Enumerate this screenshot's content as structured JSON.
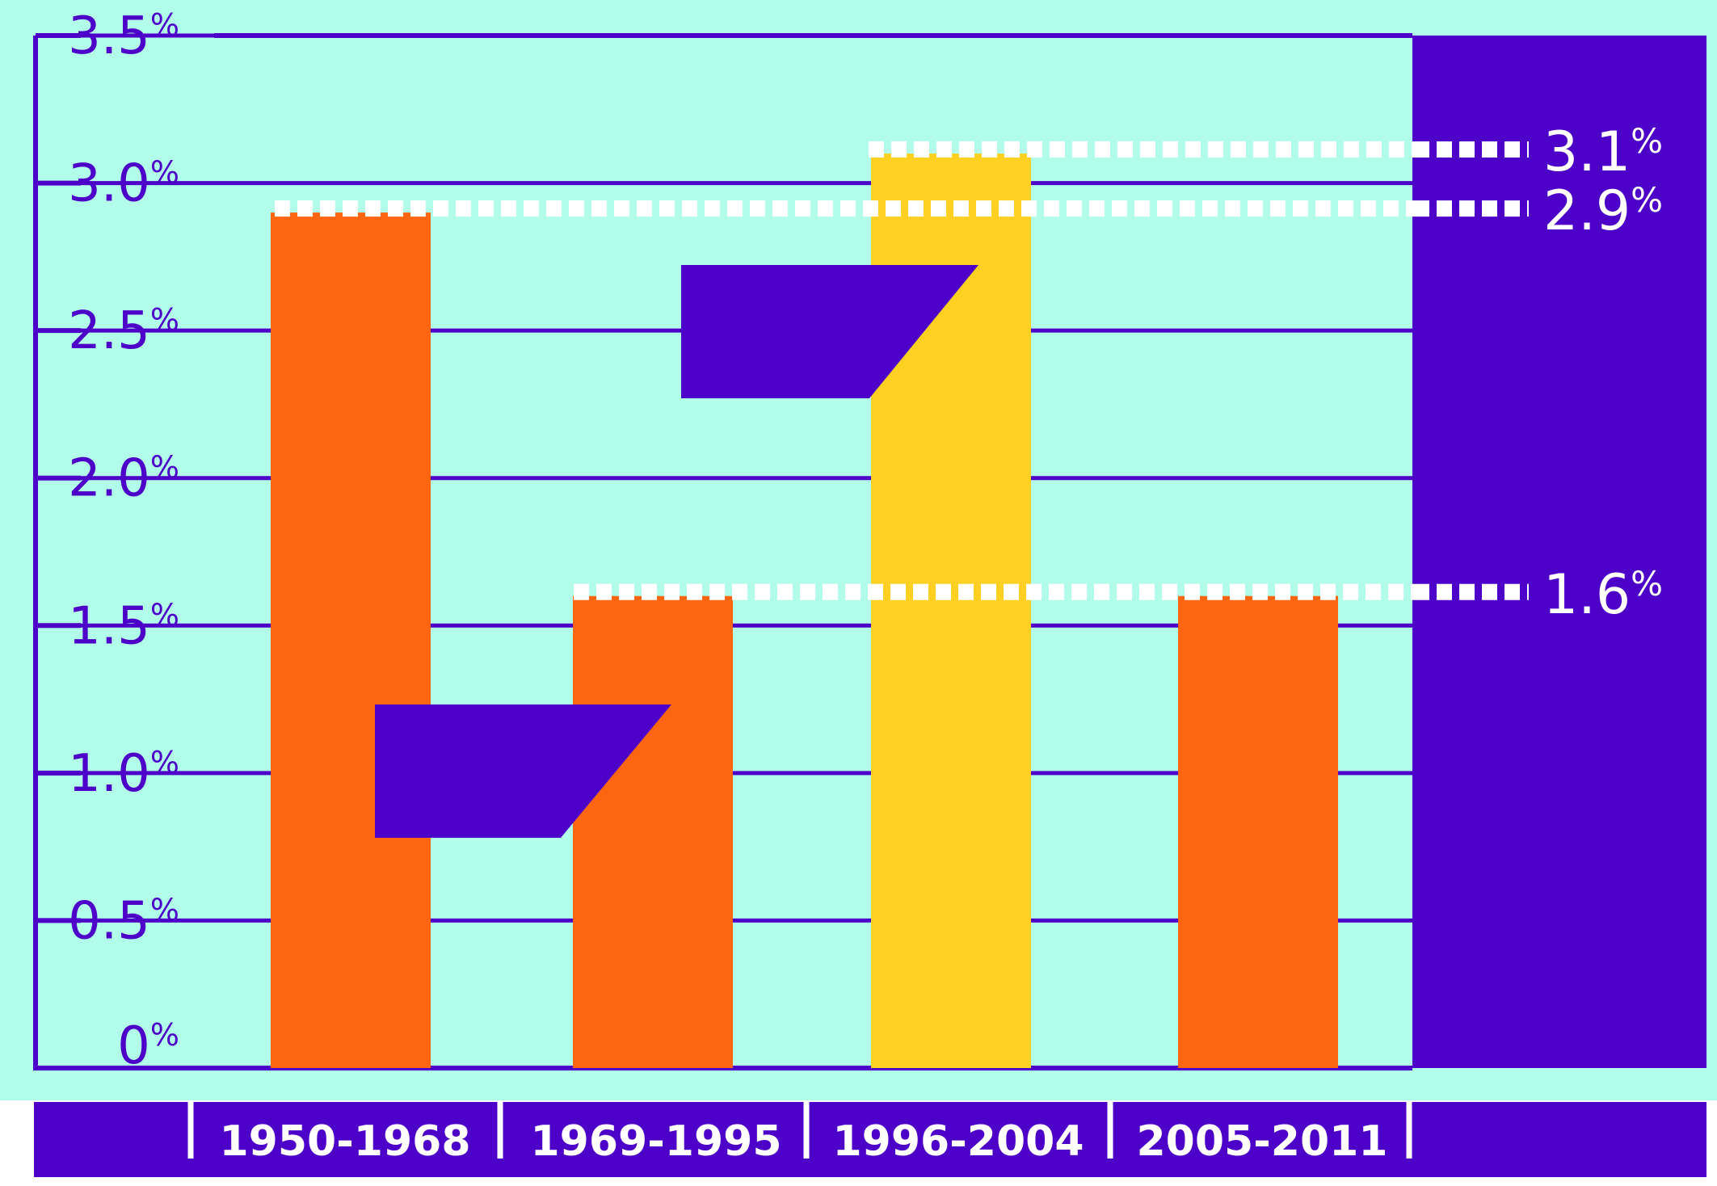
{
  "colors": {
    "background": "#b2fde9",
    "purple": "#4c00c8",
    "orange": "#fd6511",
    "yellow": "#fed021",
    "white": "#ffffff"
  },
  "chart_data": {
    "type": "bar",
    "categories": [
      "1950-1968",
      "1969-1995",
      "1996-2004",
      "2005-2011"
    ],
    "values": [
      2.9,
      1.6,
      3.1,
      1.6
    ],
    "bar_colors": [
      "orange",
      "orange",
      "yellow",
      "orange"
    ],
    "ylim": [
      0,
      3.5
    ],
    "ytick_values": [
      0,
      0.5,
      1.0,
      1.5,
      2.0,
      2.5,
      3.0,
      3.5
    ],
    "ytick_labels": [
      {
        "num": "0",
        "pct": "%"
      },
      {
        "num": "0.5",
        "pct": "%"
      },
      {
        "num": "1.0",
        "pct": "%"
      },
      {
        "num": "1.5",
        "pct": "%"
      },
      {
        "num": "2.0",
        "pct": "%"
      },
      {
        "num": "2.5",
        "pct": "%"
      },
      {
        "num": "3.0",
        "pct": "%"
      },
      {
        "num": "3.5",
        "pct": "%"
      }
    ],
    "grid": true,
    "reference_lines": [
      {
        "value": 3.1,
        "num": "3.1",
        "pct": "%"
      },
      {
        "value": 2.9,
        "num": "2.9",
        "pct": "%"
      },
      {
        "value": 1.6,
        "num": "1.6",
        "pct": "%"
      }
    ]
  }
}
